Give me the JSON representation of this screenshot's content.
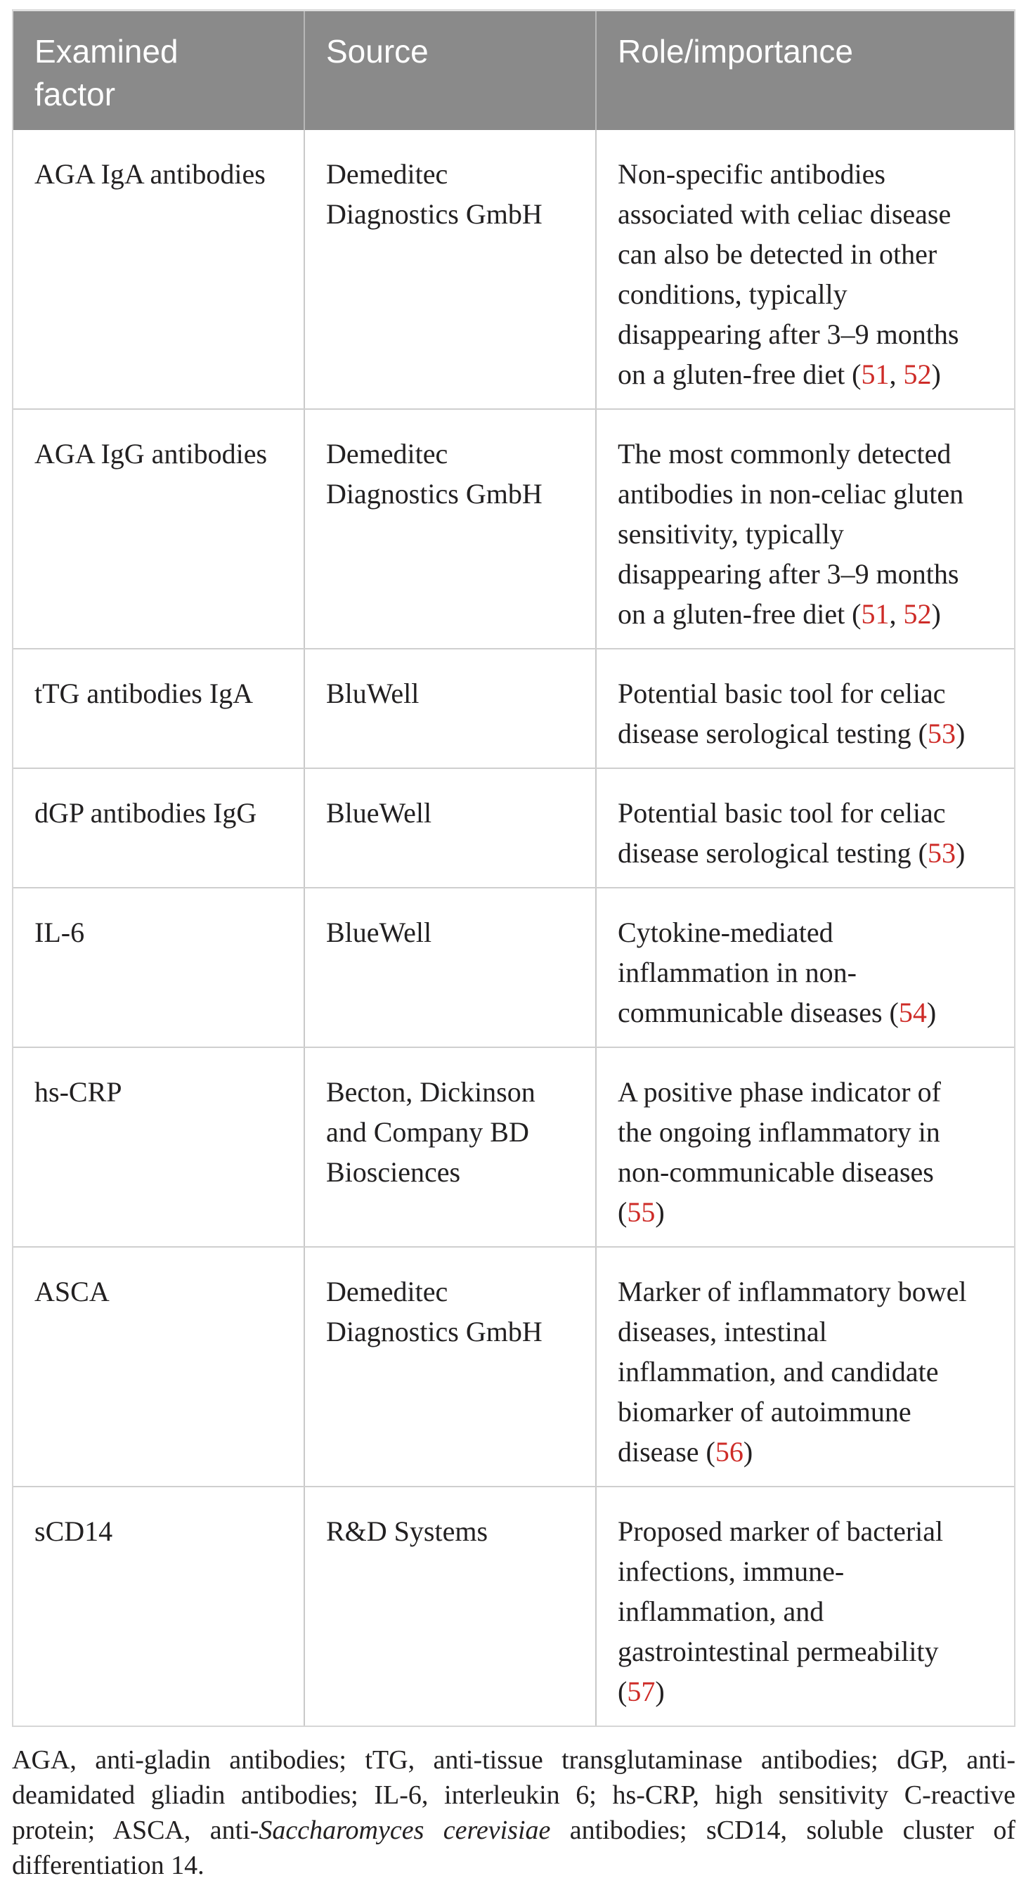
{
  "colors": {
    "header_background": "#8a8a8a",
    "header_text": "#ffffff",
    "body_text": "#222021",
    "citation_red": "#ce2b27",
    "divider_gray": "#cfcfcf"
  },
  "table": {
    "header": {
      "examined_factor": "Examined\nfactor",
      "source": "Source",
      "role_importance": "Role/importance"
    },
    "rows": [
      {
        "factor": "AGA IgA antibodies",
        "source": "Demeditec\nDiagnostics GmbH",
        "role": [
          {
            "t": "Non-specific antibodies\nassociated with celiac disease\ncan also be detected in other\nconditions, typically\ndisappearing after 3–9 months\non a gluten-free diet ("
          },
          {
            "t": "51",
            "ref": true
          },
          {
            "t": ", "
          },
          {
            "t": "52",
            "ref": true
          },
          {
            "t": ")"
          }
        ]
      },
      {
        "factor": "AGA IgG antibodies",
        "source": "Demeditec\nDiagnostics GmbH",
        "role": [
          {
            "t": "The most commonly detected\nantibodies in non-celiac gluten\nsensitivity, typically\ndisappearing after 3–9 months\non a gluten-free diet ("
          },
          {
            "t": "51",
            "ref": true
          },
          {
            "t": ", "
          },
          {
            "t": "52",
            "ref": true
          },
          {
            "t": ")"
          }
        ]
      },
      {
        "factor": "tTG antibodies IgA",
        "source": "BluWell",
        "role": [
          {
            "t": "Potential basic tool for celiac\ndisease serological testing ("
          },
          {
            "t": "53",
            "ref": true
          },
          {
            "t": ")"
          }
        ]
      },
      {
        "factor": "dGP antibodies IgG",
        "source": "BlueWell",
        "role": [
          {
            "t": "Potential basic tool for celiac\ndisease serological testing ("
          },
          {
            "t": "53",
            "ref": true
          },
          {
            "t": ")"
          }
        ]
      },
      {
        "factor": "IL-6",
        "source": "BlueWell",
        "role": [
          {
            "t": "Cytokine-mediated\ninflammation in non-\ncommunicable diseases ("
          },
          {
            "t": "54",
            "ref": true
          },
          {
            "t": ")"
          }
        ]
      },
      {
        "factor": "hs-CRP",
        "source": "Becton, Dickinson\nand Company BD\nBiosciences",
        "role": [
          {
            "t": "A positive phase indicator of\nthe ongoing inflammatory in\nnon-communicable diseases\n("
          },
          {
            "t": "55",
            "ref": true
          },
          {
            "t": ")"
          }
        ]
      },
      {
        "factor": "ASCA",
        "source": "Demeditec\nDiagnostics GmbH",
        "role": [
          {
            "t": "Marker of inflammatory bowel\ndiseases, intestinal\ninflammation, and candidate\nbiomarker of autoimmune\ndisease ("
          },
          {
            "t": "56",
            "ref": true
          },
          {
            "t": ")"
          }
        ]
      },
      {
        "factor": "sCD14",
        "source": "R&D Systems",
        "role": [
          {
            "t": "Proposed marker of bacterial\ninfections, immune-\ninflammation, and\ngastrointestinal permeability\n("
          },
          {
            "t": "57",
            "ref": true
          },
          {
            "t": ")"
          }
        ]
      }
    ]
  },
  "footnote": {
    "lines": [
      {
        "last": false,
        "segments": [
          {
            "t": "AGA, anti-gladin antibodies; tTG, anti-tissue transglutaminase antibodies; dGP, anti-"
          }
        ]
      },
      {
        "last": false,
        "segments": [
          {
            "t": "deamidated gliadin antibodies; IL-6, interleukin 6; hs-CRP, high sensitivity C-reactive"
          }
        ]
      },
      {
        "last": false,
        "segments": [
          {
            "t": "protein; ASCA, anti-"
          },
          {
            "t": "Saccharomyces cerevisiae",
            "italic": true
          },
          {
            "t": " antibodies; sCD14, soluble cluster of"
          }
        ]
      },
      {
        "last": true,
        "segments": [
          {
            "t": "differentiation 14."
          }
        ]
      }
    ]
  }
}
